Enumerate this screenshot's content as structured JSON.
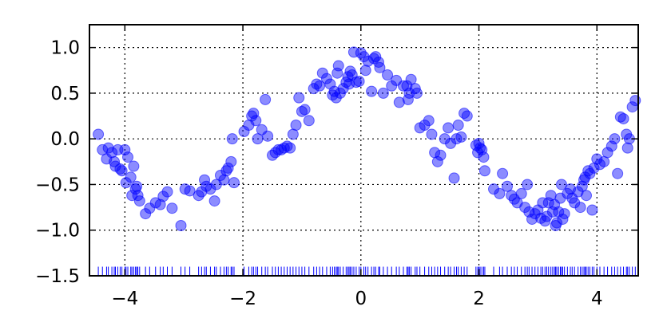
{
  "chart_data": {
    "type": "scatter",
    "title": "",
    "xlabel": "",
    "ylabel": "",
    "xlim": [
      -4.6,
      4.7
    ],
    "ylim": [
      -1.5,
      1.25
    ],
    "grid": true,
    "grid_style": "dotted",
    "x_ticks": [
      -4,
      -2,
      0,
      2,
      4
    ],
    "x_tick_labels": [
      "−4",
      "−2",
      "0",
      "2",
      "4"
    ],
    "y_ticks": [
      -1.5,
      -1.0,
      -0.5,
      0.0,
      0.5,
      1.0
    ],
    "y_tick_labels": [
      "−1.5",
      "−1.0",
      "−0.5",
      "0.0",
      "0.5",
      "1.0"
    ],
    "point_color": "#0000ff",
    "point_alpha": 0.45,
    "rug_color": "#0000ff",
    "rug_y_range": [
      -1.5,
      -1.4
    ],
    "series": [
      {
        "points": [
          [
            -4.45,
            0.05
          ],
          [
            -4.38,
            -0.12
          ],
          [
            -4.31,
            -0.22
          ],
          [
            -4.28,
            -0.1
          ],
          [
            -4.22,
            -0.15
          ],
          [
            -4.18,
            -0.25
          ],
          [
            -4.16,
            -0.3
          ],
          [
            -4.12,
            -0.12
          ],
          [
            -4.08,
            -0.33
          ],
          [
            -4.05,
            -0.35
          ],
          [
            -4.0,
            -0.12
          ],
          [
            -3.98,
            -0.48
          ],
          [
            -3.95,
            -0.2
          ],
          [
            -3.9,
            -0.42
          ],
          [
            -3.88,
            -0.62
          ],
          [
            -3.85,
            -0.3
          ],
          [
            -3.82,
            -0.55
          ],
          [
            -3.8,
            -0.52
          ],
          [
            -3.78,
            -0.62
          ],
          [
            -3.75,
            -0.68
          ],
          [
            -3.65,
            -0.82
          ],
          [
            -3.58,
            -0.76
          ],
          [
            -3.48,
            -0.7
          ],
          [
            -3.4,
            -0.72
          ],
          [
            -3.35,
            -0.63
          ],
          [
            -3.28,
            -0.58
          ],
          [
            -3.2,
            -0.76
          ],
          [
            -3.05,
            -0.95
          ],
          [
            -2.98,
            -0.55
          ],
          [
            -2.9,
            -0.57
          ],
          [
            -2.75,
            -0.62
          ],
          [
            -2.7,
            -0.58
          ],
          [
            -2.65,
            -0.45
          ],
          [
            -2.62,
            -0.52
          ],
          [
            -2.55,
            -0.55
          ],
          [
            -2.48,
            -0.68
          ],
          [
            -2.45,
            -0.5
          ],
          [
            -2.38,
            -0.4
          ],
          [
            -2.32,
            -0.45
          ],
          [
            -2.28,
            -0.35
          ],
          [
            -2.25,
            -0.32
          ],
          [
            -2.2,
            -0.25
          ],
          [
            -2.18,
            0.0
          ],
          [
            -2.15,
            -0.48
          ],
          [
            -1.98,
            0.08
          ],
          [
            -1.9,
            0.15
          ],
          [
            -1.85,
            0.25
          ],
          [
            -1.82,
            0.28
          ],
          [
            -1.78,
            0.2
          ],
          [
            -1.75,
            0.0
          ],
          [
            -1.68,
            0.1
          ],
          [
            -1.62,
            0.43
          ],
          [
            -1.58,
            0.03
          ],
          [
            -1.5,
            -0.18
          ],
          [
            -1.45,
            -0.15
          ],
          [
            -1.4,
            -0.12
          ],
          [
            -1.35,
            -0.12
          ],
          [
            -1.3,
            -0.1
          ],
          [
            -1.25,
            -0.08
          ],
          [
            -1.2,
            -0.1
          ],
          [
            -1.15,
            0.05
          ],
          [
            -1.1,
            0.15
          ],
          [
            -1.05,
            0.45
          ],
          [
            -1.0,
            0.3
          ],
          [
            -0.95,
            0.32
          ],
          [
            -0.88,
            0.2
          ],
          [
            -0.8,
            0.55
          ],
          [
            -0.75,
            0.6
          ],
          [
            -0.7,
            0.58
          ],
          [
            -0.65,
            0.72
          ],
          [
            -0.58,
            0.66
          ],
          [
            -0.52,
            0.6
          ],
          [
            -0.48,
            0.48
          ],
          [
            -0.45,
            0.52
          ],
          [
            -0.42,
            0.45
          ],
          [
            -0.4,
            0.72
          ],
          [
            -0.38,
            0.8
          ],
          [
            -0.35,
            0.5
          ],
          [
            -0.3,
            0.55
          ],
          [
            -0.25,
            0.62
          ],
          [
            -0.22,
            0.68
          ],
          [
            -0.2,
            0.6
          ],
          [
            -0.18,
            0.74
          ],
          [
            -0.15,
            0.7
          ],
          [
            -0.12,
            0.95
          ],
          [
            -0.08,
            0.62
          ],
          [
            -0.03,
            0.63
          ],
          [
            0.0,
            0.94
          ],
          [
            0.05,
            0.9
          ],
          [
            0.08,
            0.75
          ],
          [
            0.12,
            0.85
          ],
          [
            0.18,
            0.52
          ],
          [
            0.22,
            0.88
          ],
          [
            0.25,
            0.9
          ],
          [
            0.3,
            0.84
          ],
          [
            0.32,
            0.78
          ],
          [
            0.38,
            0.5
          ],
          [
            0.45,
            0.7
          ],
          [
            0.52,
            0.58
          ],
          [
            0.6,
            0.64
          ],
          [
            0.65,
            0.4
          ],
          [
            0.72,
            0.58
          ],
          [
            0.78,
            0.58
          ],
          [
            0.8,
            0.43
          ],
          [
            0.82,
            0.5
          ],
          [
            0.85,
            0.65
          ],
          [
            0.92,
            0.55
          ],
          [
            0.95,
            0.5
          ],
          [
            1.0,
            0.12
          ],
          [
            1.08,
            0.15
          ],
          [
            1.15,
            0.2
          ],
          [
            1.2,
            0.05
          ],
          [
            1.25,
            -0.15
          ],
          [
            1.3,
            -0.25
          ],
          [
            1.35,
            -0.18
          ],
          [
            1.42,
            0.0
          ],
          [
            1.48,
            0.12
          ],
          [
            1.52,
            -0.05
          ],
          [
            1.58,
            -0.43
          ],
          [
            1.62,
            0.0
          ],
          [
            1.65,
            0.15
          ],
          [
            1.7,
            0.02
          ],
          [
            1.75,
            0.28
          ],
          [
            1.8,
            0.25
          ],
          [
            1.95,
            -0.07
          ],
          [
            1.98,
            -0.15
          ],
          [
            2.0,
            -0.05
          ],
          [
            2.02,
            -0.1
          ],
          [
            2.05,
            -0.12
          ],
          [
            2.08,
            -0.2
          ],
          [
            2.1,
            -0.35
          ],
          [
            2.25,
            -0.55
          ],
          [
            2.35,
            -0.6
          ],
          [
            2.4,
            -0.38
          ],
          [
            2.48,
            -0.52
          ],
          [
            2.55,
            -0.62
          ],
          [
            2.6,
            -0.66
          ],
          [
            2.65,
            -0.7
          ],
          [
            2.72,
            -0.6
          ],
          [
            2.78,
            -0.75
          ],
          [
            2.82,
            -0.5
          ],
          [
            2.85,
            -0.8
          ],
          [
            2.9,
            -0.88
          ],
          [
            2.95,
            -0.82
          ],
          [
            3.0,
            -0.78
          ],
          [
            3.05,
            -0.87
          ],
          [
            3.08,
            -0.7
          ],
          [
            3.12,
            -0.9
          ],
          [
            3.15,
            -0.85
          ],
          [
            3.18,
            -0.7
          ],
          [
            3.22,
            -0.62
          ],
          [
            3.25,
            -0.8
          ],
          [
            3.28,
            -0.72
          ],
          [
            3.3,
            -0.95
          ],
          [
            3.32,
            -0.92
          ],
          [
            3.35,
            -0.8
          ],
          [
            3.38,
            -0.65
          ],
          [
            3.4,
            -0.5
          ],
          [
            3.42,
            -0.88
          ],
          [
            3.45,
            -0.82
          ],
          [
            3.5,
            -0.6
          ],
          [
            3.55,
            -0.55
          ],
          [
            3.58,
            -0.65
          ],
          [
            3.62,
            -0.7
          ],
          [
            3.68,
            -0.58
          ],
          [
            3.72,
            -0.75
          ],
          [
            3.75,
            -0.52
          ],
          [
            3.78,
            -0.45
          ],
          [
            3.8,
            -0.42
          ],
          [
            3.82,
            -0.62
          ],
          [
            3.85,
            -0.35
          ],
          [
            3.88,
            -0.38
          ],
          [
            3.92,
            -0.78
          ],
          [
            3.95,
            -0.32
          ],
          [
            4.0,
            -0.22
          ],
          [
            4.05,
            -0.28
          ],
          [
            4.12,
            -0.25
          ],
          [
            4.18,
            -0.15
          ],
          [
            4.25,
            -0.08
          ],
          [
            4.3,
            0.0
          ],
          [
            4.35,
            -0.38
          ],
          [
            4.4,
            0.24
          ],
          [
            4.45,
            0.22
          ],
          [
            4.5,
            0.05
          ],
          [
            4.52,
            -0.1
          ],
          [
            4.55,
            0.0
          ],
          [
            4.6,
            0.35
          ],
          [
            4.65,
            0.42
          ]
        ]
      }
    ],
    "rug_x": [
      -4.45,
      -4.38,
      -4.31,
      -4.28,
      -4.22,
      -4.18,
      -4.16,
      -4.12,
      -4.08,
      -4.05,
      -4.0,
      -3.98,
      -3.95,
      -3.9,
      -3.88,
      -3.85,
      -3.82,
      -3.8,
      -3.78,
      -3.75,
      -3.65,
      -3.58,
      -3.48,
      -3.4,
      -3.35,
      -3.28,
      -3.2,
      -3.05,
      -2.98,
      -2.9,
      -2.75,
      -2.7,
      -2.65,
      -2.62,
      -2.55,
      -2.48,
      -2.45,
      -2.38,
      -2.32,
      -2.28,
      -2.25,
      -2.2,
      -2.18,
      -2.15,
      -1.98,
      -1.9,
      -1.85,
      -1.82,
      -1.78,
      -1.75,
      -1.68,
      -1.62,
      -1.58,
      -1.5,
      -1.45,
      -1.4,
      -1.35,
      -1.3,
      -1.25,
      -1.2,
      -1.15,
      -1.1,
      -1.05,
      -1.0,
      -0.95,
      -0.88,
      -0.8,
      -0.75,
      -0.7,
      -0.65,
      -0.58,
      -0.52,
      -0.48,
      -0.45,
      -0.42,
      -0.4,
      -0.38,
      -0.35,
      -0.3,
      -0.25,
      -0.22,
      -0.2,
      -0.18,
      -0.15,
      -0.12,
      -0.08,
      -0.03,
      0.0,
      0.05,
      0.08,
      0.12,
      0.18,
      0.22,
      0.25,
      0.3,
      0.32,
      0.38,
      0.45,
      0.52,
      0.6,
      0.65,
      0.72,
      0.78,
      0.8,
      0.82,
      0.85,
      0.92,
      0.95,
      1.0,
      1.08,
      1.15,
      1.2,
      1.25,
      1.3,
      1.35,
      1.42,
      1.48,
      1.52,
      1.58,
      1.62,
      1.65,
      1.7,
      1.75,
      1.8,
      1.95,
      1.98,
      2.0,
      2.02,
      2.05,
      2.08,
      2.1,
      2.25,
      2.35,
      2.4,
      2.48,
      2.55,
      2.6,
      2.65,
      2.72,
      2.78,
      2.82,
      2.85,
      2.9,
      2.95,
      3.0,
      3.05,
      3.08,
      3.12,
      3.15,
      3.18,
      3.22,
      3.25,
      3.28,
      3.3,
      3.32,
      3.35,
      3.38,
      3.4,
      3.42,
      3.45,
      3.5,
      3.55,
      3.58,
      3.62,
      3.68,
      3.72,
      3.75,
      3.78,
      3.8,
      3.82,
      3.85,
      3.88,
      3.92,
      3.95,
      4.0,
      4.05,
      4.12,
      4.18,
      4.25,
      4.3,
      4.35,
      4.4,
      4.45,
      4.5,
      4.52,
      4.55,
      4.6,
      4.65
    ]
  }
}
